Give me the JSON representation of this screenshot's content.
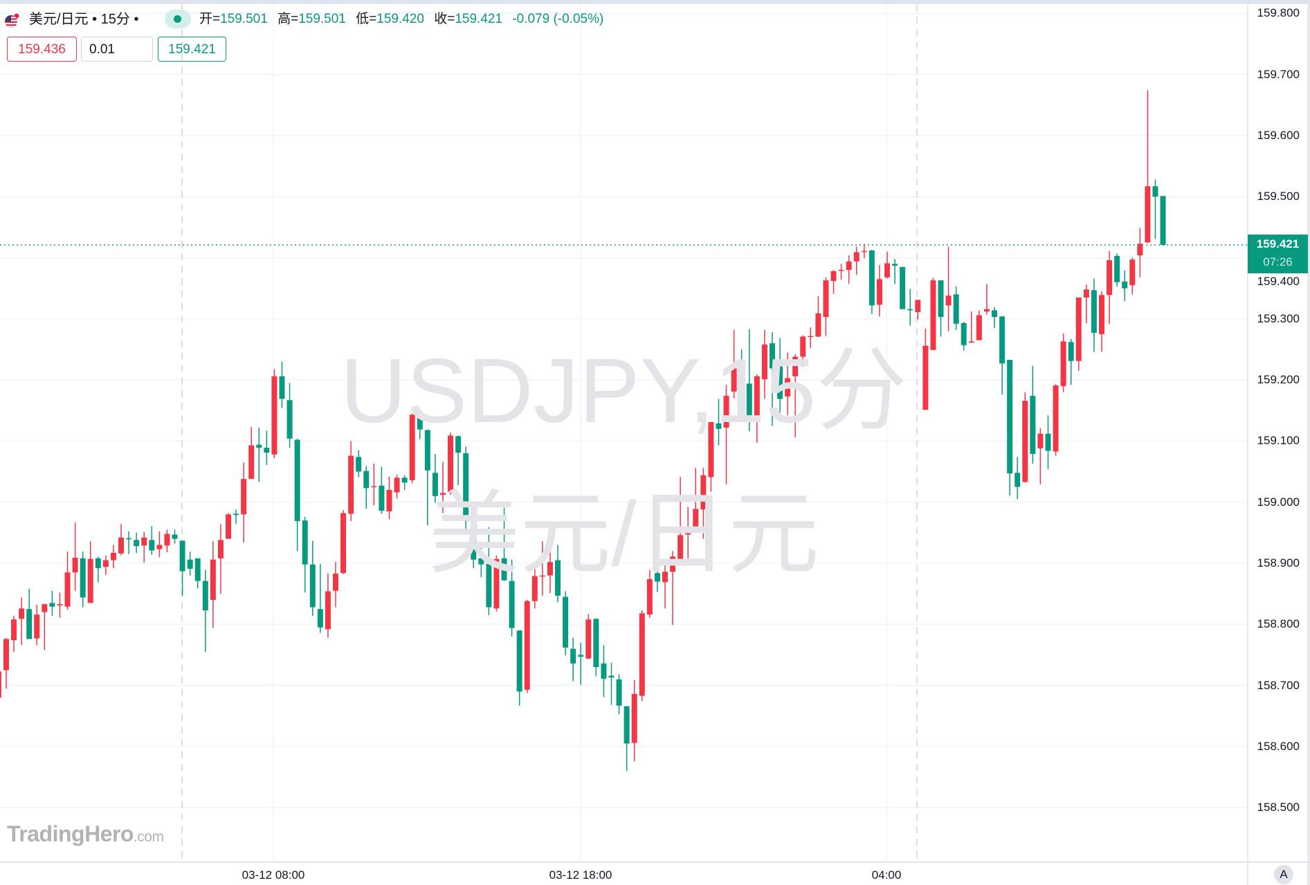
{
  "header": {
    "symbol_title": "美元/日元 • 15分 •",
    "flag_icon": "us-jp-flag-icon",
    "status_icon": "market-open-dot-icon",
    "ohlc": [
      {
        "label": "开=",
        "value": "159.501"
      },
      {
        "label": "高=",
        "value": "159.501"
      },
      {
        "label": "低=",
        "value": "159.420"
      },
      {
        "label": "收=",
        "value": "159.421"
      }
    ],
    "change": "-0.079 (-0.05%)"
  },
  "trade": {
    "sell_price": "159.436",
    "quantity": "0.01",
    "buy_price": "159.421"
  },
  "watermark": {
    "line1": "USDJPY,15分",
    "line2": "美元/日元"
  },
  "logo": {
    "name": "TradingHero",
    "suffix": ".com"
  },
  "current_price": {
    "price": "159.421",
    "countdown": "07:26"
  },
  "auto_scale_label": "A",
  "colors": {
    "up": "#f23645",
    "down": "#089981",
    "grid": "#f0f3fa",
    "axis": "#e0e3eb"
  },
  "chart_data": {
    "type": "candlestick",
    "ylim": [
      158.48,
      159.82
    ],
    "y_ticks": [
      "159.800",
      "159.700",
      "159.600",
      "159.500",
      "159.400",
      "159.300",
      "159.200",
      "159.100",
      "159.000",
      "158.900",
      "158.800",
      "158.700",
      "158.600",
      "158.500"
    ],
    "x_ticks": [
      "03-12 08:00",
      "03-12 18:00",
      "04:00"
    ],
    "grid": true,
    "last_price": 159.421,
    "ohlc_columns": [
      "open",
      "high",
      "low",
      "close"
    ],
    "candles": [
      [
        158.68,
        158.723,
        158.67,
        158.723
      ],
      [
        158.725,
        158.778,
        158.695,
        158.776
      ],
      [
        158.774,
        158.814,
        158.755,
        158.808
      ],
      [
        158.809,
        158.844,
        158.766,
        158.826
      ],
      [
        158.825,
        158.858,
        158.776,
        158.776
      ],
      [
        158.777,
        158.832,
        158.766,
        158.816
      ],
      [
        158.82,
        158.833,
        158.758,
        158.833
      ],
      [
        158.835,
        158.855,
        158.814,
        158.829
      ],
      [
        158.831,
        158.852,
        158.811,
        158.833
      ],
      [
        158.829,
        158.919,
        158.824,
        158.885
      ],
      [
        158.885,
        158.967,
        158.855,
        158.909
      ],
      [
        158.908,
        158.919,
        158.828,
        158.844
      ],
      [
        158.835,
        158.936,
        158.835,
        158.907
      ],
      [
        158.908,
        158.911,
        158.869,
        158.892
      ],
      [
        158.894,
        158.913,
        158.881,
        158.905
      ],
      [
        158.905,
        158.93,
        158.892,
        158.917
      ],
      [
        158.916,
        158.964,
        158.913,
        158.942
      ],
      [
        158.941,
        158.952,
        158.915,
        158.94
      ],
      [
        158.938,
        158.95,
        158.917,
        158.928
      ],
      [
        158.929,
        158.951,
        158.901,
        158.942
      ],
      [
        158.938,
        158.961,
        158.914,
        158.921
      ],
      [
        158.923,
        158.952,
        158.91,
        158.93
      ],
      [
        158.929,
        158.955,
        158.918,
        158.948
      ],
      [
        158.947,
        158.955,
        158.932,
        158.94
      ],
      [
        158.937,
        158.937,
        158.847,
        158.887
      ],
      [
        158.906,
        158.919,
        158.88,
        158.891
      ],
      [
        158.908,
        158.908,
        158.859,
        158.871
      ],
      [
        158.871,
        158.889,
        158.755,
        158.823
      ],
      [
        158.84,
        158.936,
        158.794,
        158.906
      ],
      [
        158.908,
        158.964,
        158.85,
        158.938
      ],
      [
        158.94,
        158.982,
        158.94,
        158.98
      ],
      [
        158.981,
        158.988,
        158.964,
        158.979
      ],
      [
        158.98,
        159.065,
        158.934,
        159.038
      ],
      [
        159.038,
        159.123,
        159.038,
        159.093
      ],
      [
        159.094,
        159.122,
        159.033,
        159.089
      ],
      [
        159.089,
        159.117,
        159.061,
        159.081
      ],
      [
        159.078,
        159.218,
        159.072,
        159.206
      ],
      [
        159.206,
        159.23,
        159.154,
        159.169
      ],
      [
        159.167,
        159.195,
        159.089,
        159.104
      ],
      [
        159.102,
        159.104,
        158.92,
        158.969
      ],
      [
        158.97,
        158.976,
        158.852,
        158.898
      ],
      [
        158.898,
        158.937,
        158.814,
        158.828
      ],
      [
        158.825,
        158.899,
        158.786,
        158.795
      ],
      [
        158.792,
        158.883,
        158.778,
        158.854
      ],
      [
        158.855,
        158.902,
        158.828,
        158.883
      ],
      [
        158.884,
        158.987,
        158.882,
        158.982
      ],
      [
        158.981,
        159.1,
        158.969,
        159.076
      ],
      [
        159.074,
        159.085,
        159.041,
        159.05
      ],
      [
        159.051,
        159.059,
        158.989,
        159.023
      ],
      [
        159.025,
        159.063,
        158.995,
        159.026
      ],
      [
        159.027,
        159.058,
        158.981,
        158.986
      ],
      [
        158.985,
        159.042,
        158.972,
        159.02
      ],
      [
        159.016,
        159.045,
        159.006,
        159.04
      ],
      [
        159.04,
        159.044,
        159.02,
        159.032
      ],
      [
        159.036,
        159.145,
        159.031,
        159.143
      ],
      [
        159.144,
        159.149,
        159.103,
        159.119
      ],
      [
        159.118,
        159.119,
        158.962,
        159.052
      ],
      [
        159.048,
        159.079,
        158.999,
        159.01
      ],
      [
        159.012,
        159.066,
        158.982,
        159.015
      ],
      [
        159.017,
        159.114,
        159.012,
        159.109
      ],
      [
        159.108,
        159.109,
        159.028,
        159.081
      ],
      [
        159.08,
        159.091,
        158.95,
        158.969
      ],
      [
        158.97,
        158.978,
        158.892,
        158.906
      ],
      [
        158.908,
        158.933,
        158.877,
        158.898
      ],
      [
        158.899,
        158.959,
        158.815,
        158.828
      ],
      [
        158.826,
        158.913,
        158.821,
        158.907
      ],
      [
        158.908,
        158.991,
        158.871,
        158.872
      ],
      [
        158.871,
        158.906,
        158.78,
        158.794
      ],
      [
        158.79,
        158.79,
        158.667,
        158.69
      ],
      [
        158.693,
        158.84,
        158.688,
        158.838
      ],
      [
        158.838,
        158.897,
        158.826,
        158.879
      ],
      [
        158.879,
        158.936,
        158.847,
        158.88
      ],
      [
        158.88,
        158.927,
        158.851,
        158.902
      ],
      [
        158.905,
        158.93,
        158.836,
        158.847
      ],
      [
        158.845,
        158.854,
        158.749,
        158.762
      ],
      [
        158.76,
        158.778,
        158.707,
        158.736
      ],
      [
        158.75,
        158.77,
        158.701,
        158.747
      ],
      [
        158.744,
        158.817,
        158.743,
        158.808
      ],
      [
        158.809,
        158.81,
        158.715,
        158.73
      ],
      [
        158.736,
        158.766,
        158.681,
        158.711
      ],
      [
        158.716,
        158.737,
        158.668,
        158.713
      ],
      [
        158.71,
        158.718,
        158.653,
        158.667
      ],
      [
        158.666,
        158.666,
        158.56,
        158.605
      ],
      [
        158.606,
        158.709,
        158.576,
        158.686
      ],
      [
        158.683,
        158.823,
        158.674,
        158.818
      ],
      [
        158.816,
        158.889,
        158.811,
        158.874
      ],
      [
        158.884,
        158.926,
        158.853,
        158.87
      ],
      [
        158.869,
        158.897,
        158.826,
        158.886
      ],
      [
        158.886,
        158.92,
        158.799,
        158.911
      ],
      [
        158.904,
        159.041,
        158.904,
        158.946
      ],
      [
        158.947,
        158.992,
        158.908,
        158.959
      ],
      [
        158.96,
        159.056,
        158.951,
        158.989
      ],
      [
        158.988,
        159.056,
        158.94,
        159.044
      ],
      [
        159.041,
        159.131,
        159.017,
        159.131
      ],
      [
        159.129,
        159.169,
        159.093,
        159.12
      ],
      [
        159.122,
        159.192,
        159.029,
        159.174
      ],
      [
        159.181,
        159.282,
        159.17,
        159.219
      ],
      [
        159.222,
        159.25,
        159.179,
        159.193
      ],
      [
        159.194,
        159.283,
        159.116,
        159.134
      ],
      [
        159.137,
        159.209,
        159.097,
        159.206
      ],
      [
        159.201,
        159.282,
        159.169,
        159.258
      ],
      [
        159.26,
        159.278,
        159.125,
        159.219
      ],
      [
        159.222,
        159.269,
        159.137,
        159.169
      ],
      [
        159.173,
        159.245,
        159.142,
        159.203
      ],
      [
        159.206,
        159.242,
        159.106,
        159.238
      ],
      [
        159.238,
        159.273,
        159.222,
        159.271
      ],
      [
        159.271,
        159.286,
        159.252,
        159.272
      ],
      [
        159.271,
        159.337,
        159.27,
        159.309
      ],
      [
        159.303,
        159.368,
        159.272,
        159.363
      ],
      [
        159.362,
        159.38,
        159.341,
        159.378
      ],
      [
        159.379,
        159.39,
        159.364,
        159.38
      ],
      [
        159.38,
        159.404,
        159.357,
        159.394
      ],
      [
        159.394,
        159.418,
        159.372,
        159.409
      ],
      [
        159.41,
        159.423,
        159.399,
        159.411
      ],
      [
        159.412,
        159.413,
        159.308,
        159.322
      ],
      [
        159.323,
        159.388,
        159.304,
        159.365
      ],
      [
        159.368,
        159.41,
        159.366,
        159.391
      ],
      [
        159.39,
        159.398,
        159.357,
        159.387
      ],
      [
        159.385,
        159.385,
        159.316,
        159.316
      ],
      [
        159.316,
        159.349,
        159.289,
        159.314
      ],
      [
        159.311,
        159.331,
        159.299,
        159.331
      ],
      [
        159.151,
        159.284,
        159.151,
        159.256
      ],
      [
        159.249,
        159.367,
        159.249,
        159.363
      ],
      [
        159.363,
        159.363,
        159.271,
        159.303
      ],
      [
        159.322,
        159.418,
        159.28,
        159.338
      ],
      [
        159.34,
        159.353,
        159.282,
        159.292
      ],
      [
        159.293,
        159.295,
        159.248,
        159.257
      ],
      [
        159.261,
        159.312,
        159.261,
        159.263
      ],
      [
        159.265,
        159.314,
        159.265,
        159.306
      ],
      [
        159.312,
        159.357,
        159.307,
        159.316
      ],
      [
        159.314,
        159.319,
        159.285,
        159.303
      ],
      [
        159.304,
        159.304,
        159.176,
        159.227
      ],
      [
        159.233,
        159.233,
        159.011,
        159.047
      ],
      [
        159.048,
        159.074,
        159.005,
        159.025
      ],
      [
        159.033,
        159.18,
        159.032,
        159.166
      ],
      [
        159.174,
        159.223,
        159.063,
        159.079
      ],
      [
        159.088,
        159.121,
        159.029,
        159.112
      ],
      [
        159.112,
        159.142,
        159.054,
        159.084
      ],
      [
        159.083,
        159.193,
        159.076,
        159.191
      ],
      [
        159.19,
        159.276,
        159.18,
        159.263
      ],
      [
        159.262,
        159.267,
        159.192,
        159.231
      ],
      [
        159.231,
        159.335,
        159.215,
        159.335
      ],
      [
        159.335,
        159.356,
        159.293,
        159.348
      ],
      [
        159.347,
        159.366,
        159.246,
        159.277
      ],
      [
        159.275,
        159.345,
        159.246,
        159.339
      ],
      [
        159.339,
        159.411,
        159.292,
        159.396
      ],
      [
        159.403,
        159.407,
        159.353,
        159.36
      ],
      [
        159.361,
        159.379,
        159.329,
        159.35
      ],
      [
        159.355,
        159.4,
        159.34,
        159.397
      ],
      [
        159.404,
        159.449,
        159.368,
        159.423
      ],
      [
        159.425,
        159.674,
        159.424,
        159.517
      ],
      [
        159.517,
        159.528,
        159.431,
        159.5
      ],
      [
        159.501,
        159.501,
        159.42,
        159.421
      ]
    ]
  }
}
